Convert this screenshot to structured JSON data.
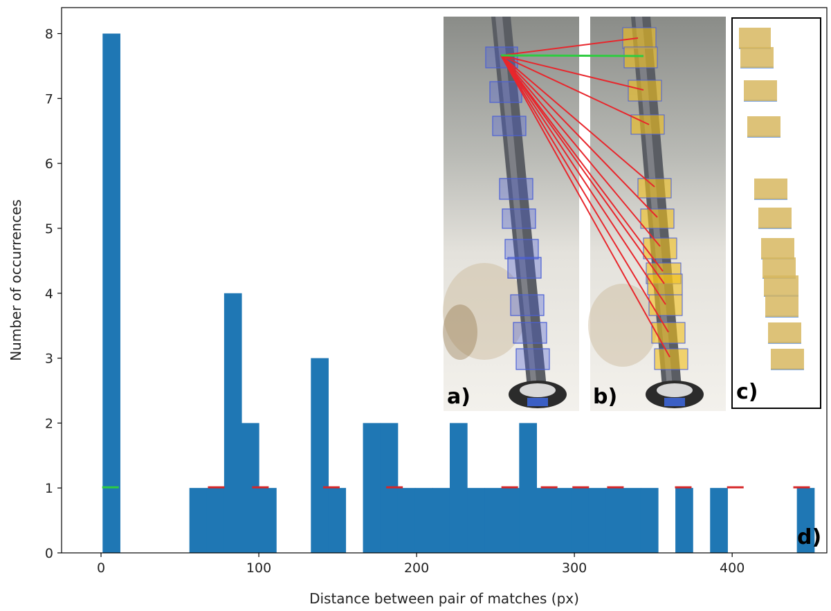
{
  "chart_data": {
    "type": "bar",
    "xlabel": "Distance between pair of matches (px)",
    "ylabel": "Number of occurrences",
    "xlim": [
      -25,
      460
    ],
    "ylim": [
      0,
      8.4
    ],
    "x_ticks": [
      0,
      100,
      200,
      300,
      400
    ],
    "y_ticks": [
      0,
      1,
      2,
      3,
      4,
      5,
      6,
      7,
      8
    ],
    "bin_width": 11,
    "bins": [
      {
        "start": 1,
        "count": 8
      },
      {
        "start": 56,
        "count": 1
      },
      {
        "start": 67,
        "count": 1
      },
      {
        "start": 78,
        "count": 4
      },
      {
        "start": 89,
        "count": 2
      },
      {
        "start": 100,
        "count": 1
      },
      {
        "start": 133,
        "count": 3
      },
      {
        "start": 144,
        "count": 1
      },
      {
        "start": 166,
        "count": 2
      },
      {
        "start": 177,
        "count": 2
      },
      {
        "start": 188,
        "count": 1
      },
      {
        "start": 199,
        "count": 1
      },
      {
        "start": 210,
        "count": 1
      },
      {
        "start": 221,
        "count": 2
      },
      {
        "start": 232,
        "count": 1
      },
      {
        "start": 243,
        "count": 1
      },
      {
        "start": 254,
        "count": 1
      },
      {
        "start": 265,
        "count": 2
      },
      {
        "start": 276,
        "count": 1
      },
      {
        "start": 287,
        "count": 1
      },
      {
        "start": 298,
        "count": 1
      },
      {
        "start": 309,
        "count": 1
      },
      {
        "start": 320,
        "count": 1
      },
      {
        "start": 331,
        "count": 1
      },
      {
        "start": 342,
        "count": 1
      },
      {
        "start": 364,
        "count": 1
      },
      {
        "start": 386,
        "count": 1
      },
      {
        "start": 441,
        "count": 1
      }
    ],
    "match_markers": [
      {
        "x": 6,
        "color": "#2ecc40"
      },
      {
        "x": 73,
        "color": "#d62728"
      },
      {
        "x": 101,
        "color": "#d62728"
      },
      {
        "x": 146,
        "color": "#d62728"
      },
      {
        "x": 186,
        "color": "#d62728"
      },
      {
        "x": 259,
        "color": "#d62728"
      },
      {
        "x": 284,
        "color": "#d62728"
      },
      {
        "x": 304,
        "color": "#d62728"
      },
      {
        "x": 326,
        "color": "#d62728"
      },
      {
        "x": 369,
        "color": "#d62728"
      },
      {
        "x": 402,
        "color": "#d62728"
      },
      {
        "x": 444,
        "color": "#d62728"
      }
    ],
    "bar_color": "#1f77b4"
  },
  "panels": {
    "a": "a)",
    "b": "b)",
    "c": "c)",
    "d": "d)"
  },
  "colors": {
    "box_blue": "#4a5fd6",
    "box_yellow": "#f2c01a",
    "line_red": "#e8262c",
    "line_green": "#2ecc40"
  }
}
